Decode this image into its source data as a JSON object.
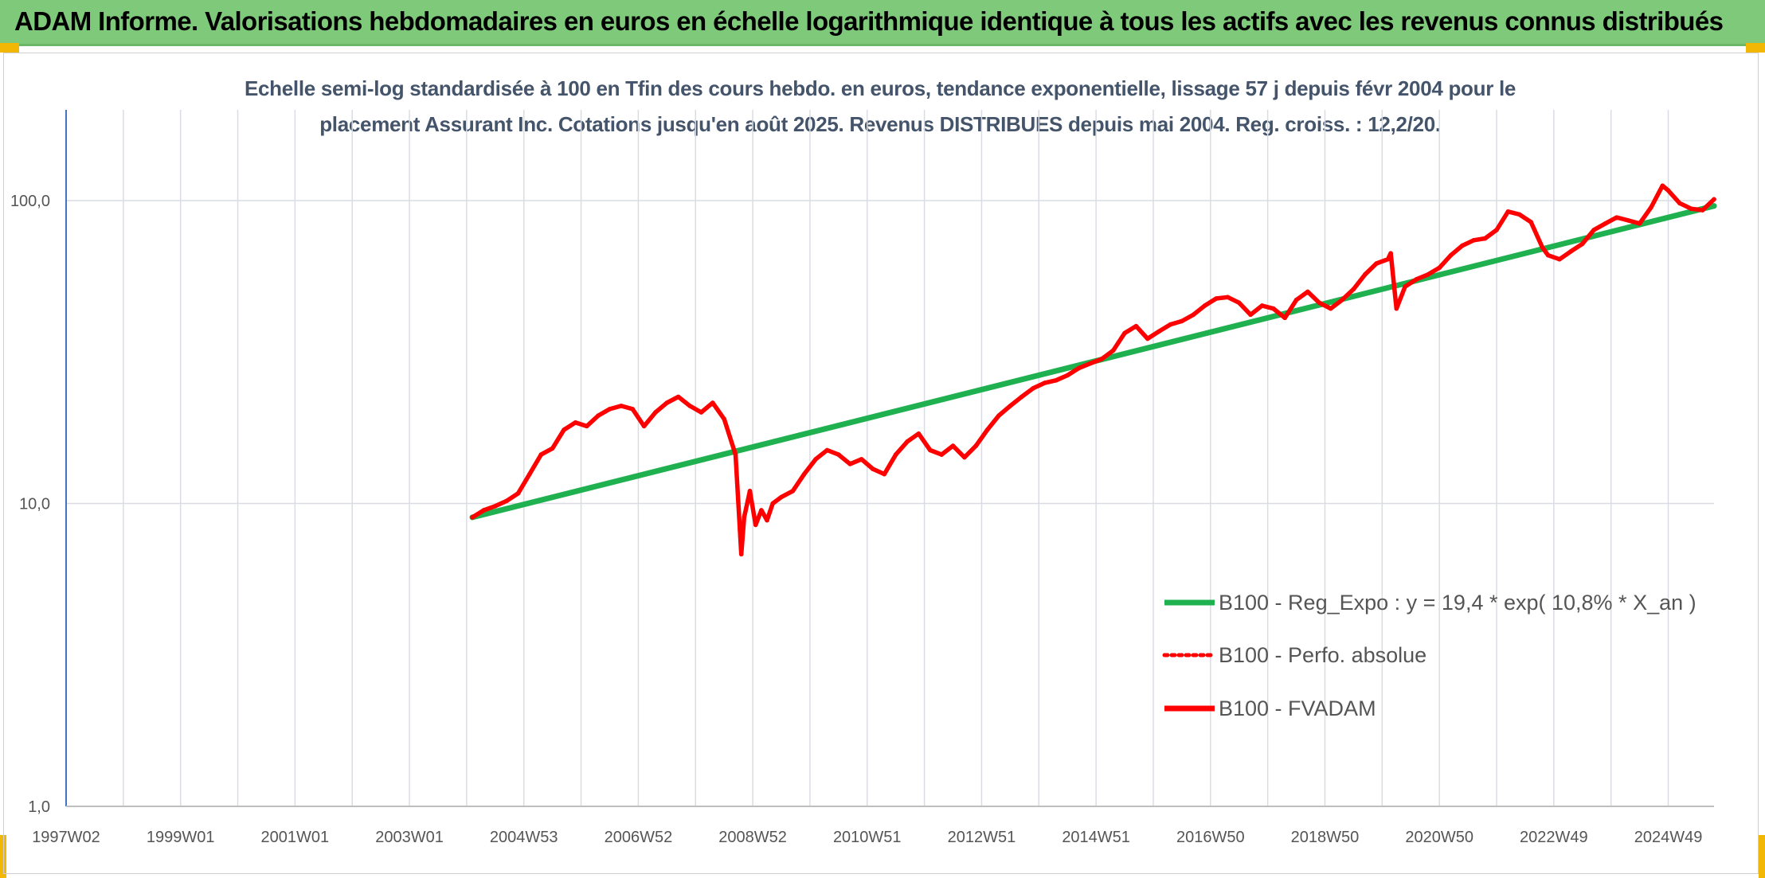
{
  "banner": {
    "title": "ADAM Informe. Valorisations hebdomadaires en euros en échelle logarithmique identique à tous les actifs avec les revenus connus distribués"
  },
  "colors": {
    "banner_bg": "#7fc97a",
    "fvadam": "#ff0000",
    "perf_absolue": "#ff0000",
    "regression": "#1fb050",
    "gridline": "#d9dde3",
    "axis_line": "#4472c4"
  },
  "chart_data": {
    "type": "line",
    "title_line1": "Echelle semi-log standardisée à 100 en Tfin des cours hebdo. en euros, tendance exponentielle, lissage 57 j depuis févr 2004 pour le",
    "title_line2": "placement Assurant Inc. Cotations jusqu'en août 2025. Revenus DISTRIBUES depuis mai 2004. Reg. croiss. : 12,2/20.",
    "y_scale": "log",
    "ylim": [
      1,
      200
    ],
    "y_ticks": [
      {
        "value": 1,
        "label": "1,0"
      },
      {
        "value": 10,
        "label": "10,0"
      },
      {
        "value": 100,
        "label": "100,0"
      }
    ],
    "xlim": [
      1997.0,
      2025.8
    ],
    "x_ticks": [
      {
        "value": 1997.0,
        "label": "1997W02"
      },
      {
        "value": 1999.0,
        "label": "1999W01"
      },
      {
        "value": 2001.0,
        "label": "2001W01"
      },
      {
        "value": 2003.0,
        "label": "2003W01"
      },
      {
        "value": 2005.0,
        "label": "2004W53"
      },
      {
        "value": 2007.0,
        "label": "2006W52"
      },
      {
        "value": 2009.0,
        "label": "2008W52"
      },
      {
        "value": 2011.0,
        "label": "2010W51"
      },
      {
        "value": 2013.0,
        "label": "2012W51"
      },
      {
        "value": 2015.0,
        "label": "2014W51"
      },
      {
        "value": 2017.0,
        "label": "2016W50"
      },
      {
        "value": 2019.0,
        "label": "2018W50"
      },
      {
        "value": 2021.0,
        "label": "2020W50"
      },
      {
        "value": 2023.0,
        "label": "2022W49"
      },
      {
        "value": 2025.0,
        "label": "2024W49"
      }
    ],
    "x_gridlines": [
      1997.0,
      1998.0,
      1999.0,
      2000.0,
      2001.0,
      2002.0,
      2003.0,
      2004.0,
      2005.0,
      2006.0,
      2007.0,
      2008.0,
      2009.0,
      2010.0,
      2011.0,
      2012.0,
      2013.0,
      2014.0,
      2015.0,
      2016.0,
      2017.0,
      2018.0,
      2019.0,
      2020.0,
      2021.0,
      2022.0,
      2023.0,
      2024.0,
      2025.0
    ],
    "grid": true,
    "legend_position": "bottom-right",
    "series": [
      {
        "name": "B100 - Reg_Expo : y = 19,4 * exp( 10,8% *  X_an )",
        "style": "solid",
        "color": "#1fb050",
        "x": [
          2004.1,
          2025.8
        ],
        "y": [
          9.0,
          96.0
        ]
      },
      {
        "name": "B100 - Perfo. absolue",
        "style": "dotted",
        "color": "#ff0000",
        "x": [],
        "y": []
      },
      {
        "name": "B100 - FVADAM",
        "style": "solid",
        "color": "#ff0000",
        "x": [
          2004.1,
          2004.3,
          2004.5,
          2004.7,
          2004.9,
          2005.1,
          2005.3,
          2005.5,
          2005.7,
          2005.9,
          2006.1,
          2006.3,
          2006.5,
          2006.7,
          2006.9,
          2007.1,
          2007.3,
          2007.5,
          2007.7,
          2007.9,
          2008.1,
          2008.3,
          2008.5,
          2008.7,
          2008.8,
          2008.85,
          2008.95,
          2009.05,
          2009.15,
          2009.25,
          2009.35,
          2009.5,
          2009.7,
          2009.9,
          2010.1,
          2010.3,
          2010.5,
          2010.7,
          2010.9,
          2011.1,
          2011.3,
          2011.5,
          2011.7,
          2011.9,
          2012.1,
          2012.3,
          2012.5,
          2012.7,
          2012.9,
          2013.1,
          2013.3,
          2013.5,
          2013.7,
          2013.9,
          2014.1,
          2014.3,
          2014.5,
          2014.7,
          2014.9,
          2015.1,
          2015.3,
          2015.5,
          2015.7,
          2015.9,
          2016.1,
          2016.3,
          2016.5,
          2016.7,
          2016.9,
          2017.1,
          2017.3,
          2017.5,
          2017.7,
          2017.9,
          2018.1,
          2018.3,
          2018.5,
          2018.7,
          2018.9,
          2019.1,
          2019.3,
          2019.5,
          2019.7,
          2019.9,
          2020.1,
          2020.15,
          2020.25,
          2020.4,
          2020.6,
          2020.8,
          2021.0,
          2021.2,
          2021.4,
          2021.6,
          2021.8,
          2022.0,
          2022.2,
          2022.4,
          2022.6,
          2022.8,
          2022.9,
          2023.1,
          2023.3,
          2023.5,
          2023.7,
          2023.9,
          2024.1,
          2024.3,
          2024.5,
          2024.7,
          2024.9,
          2025.0,
          2025.2,
          2025.4,
          2025.6,
          2025.8
        ],
        "y": [
          9.0,
          9.5,
          9.8,
          10.2,
          10.8,
          12.5,
          14.5,
          15.2,
          17.5,
          18.5,
          18.0,
          19.5,
          20.5,
          21.0,
          20.5,
          18.0,
          20.0,
          21.5,
          22.5,
          21.0,
          20.0,
          21.5,
          19.0,
          14.5,
          6.8,
          9.0,
          11.0,
          8.5,
          9.5,
          8.8,
          10.0,
          10.5,
          11.0,
          12.5,
          14.0,
          15.0,
          14.5,
          13.5,
          14.0,
          13.0,
          12.5,
          14.5,
          16.0,
          17.0,
          15.0,
          14.5,
          15.5,
          14.2,
          15.5,
          17.5,
          19.5,
          21.0,
          22.5,
          24.0,
          25.0,
          25.5,
          26.5,
          28.0,
          29.0,
          30.0,
          32.0,
          36.5,
          38.5,
          35.0,
          37.0,
          39.0,
          40.0,
          42.0,
          45.0,
          47.5,
          48.0,
          46.0,
          42.0,
          45.0,
          44.0,
          41.0,
          47.0,
          50.0,
          46.0,
          44.0,
          47.0,
          51.0,
          57.0,
          62.0,
          64.0,
          67.0,
          44.0,
          52.0,
          55.0,
          57.0,
          60.0,
          66.0,
          71.0,
          74.0,
          75.0,
          80.0,
          92.0,
          90.0,
          85.0,
          70.0,
          66.0,
          64.0,
          68.0,
          72.0,
          80.0,
          84.0,
          88.0,
          86.0,
          84.0,
          95.0,
          112.0,
          108.0,
          98.0,
          94.0,
          93.0,
          101.0
        ]
      }
    ]
  }
}
